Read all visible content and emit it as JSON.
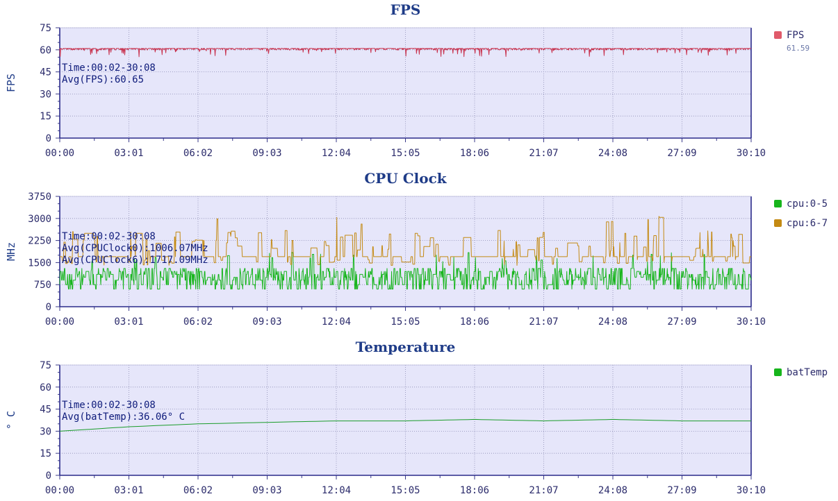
{
  "chart_data": [
    {
      "type": "line",
      "title": "FPS",
      "ylabel": "FPS",
      "ylim": [
        0,
        75
      ],
      "yticks": [
        "0",
        "15",
        "30",
        "45",
        "60",
        "75"
      ],
      "xticks": [
        "00:00",
        "03:01",
        "06:02",
        "09:03",
        "12:04",
        "15:05",
        "18:06",
        "21:07",
        "24:08",
        "27:09",
        "30:10"
      ],
      "grid": true,
      "annotations": [
        "Time:00:02-30:08",
        "Avg(FPS):60.65"
      ],
      "series": [
        {
          "name": "FPS",
          "sub": "61.59",
          "color": "#c8324e",
          "swatch": "#e05a6a",
          "kind": "noisy",
          "base": 61,
          "dips": 4,
          "seed": 7
        }
      ]
    },
    {
      "type": "line",
      "title": "CPU Clock",
      "ylabel": "MHz",
      "ylim": [
        0,
        3750
      ],
      "yticks": [
        "0",
        "750",
        "1500",
        "2250",
        "3000",
        "3750"
      ],
      "xticks": [
        "00:00",
        "03:01",
        "06:02",
        "09:03",
        "12:04",
        "15:05",
        "18:06",
        "21:07",
        "24:08",
        "27:09",
        "30:10"
      ],
      "grid": true,
      "annotations": [
        "Time:00:02-30:08",
        "Avg(CPUClock0):1006.07MHz",
        "Avg(CPUClock6):1717.09MHz"
      ],
      "series": [
        {
          "name": "cpu:0-5",
          "color": "#17b51c",
          "swatch": "#17b51c",
          "kind": "cpu_small",
          "seed": 11
        },
        {
          "name": "cpu:6-7",
          "color": "#c48a13",
          "swatch": "#c48a13",
          "kind": "cpu_big",
          "seed": 23
        }
      ]
    },
    {
      "type": "line",
      "title": "Temperature",
      "ylabel": "° C",
      "ylim": [
        0,
        75
      ],
      "yticks": [
        "0",
        "15",
        "30",
        "45",
        "60",
        "75"
      ],
      "xticks": [
        "00:00",
        "03:01",
        "06:02",
        "09:03",
        "12:04",
        "15:05",
        "18:06",
        "21:07",
        "24:08",
        "27:09",
        "30:10"
      ],
      "grid": true,
      "annotations": [
        "Time:00:02-30:08",
        "Avg(batTemp):36.06° C"
      ],
      "series": [
        {
          "name": "batTemp",
          "color": "#1a9c2a",
          "swatch": "#17b51c",
          "kind": "smooth",
          "x": [
            "00:00",
            "03:01",
            "06:02",
            "09:03",
            "12:04",
            "15:05",
            "18:06",
            "21:07",
            "24:08",
            "27:09",
            "30:10"
          ],
          "values": [
            30,
            33,
            35,
            36,
            37,
            37,
            38,
            37,
            38,
            37,
            37
          ]
        }
      ]
    }
  ]
}
